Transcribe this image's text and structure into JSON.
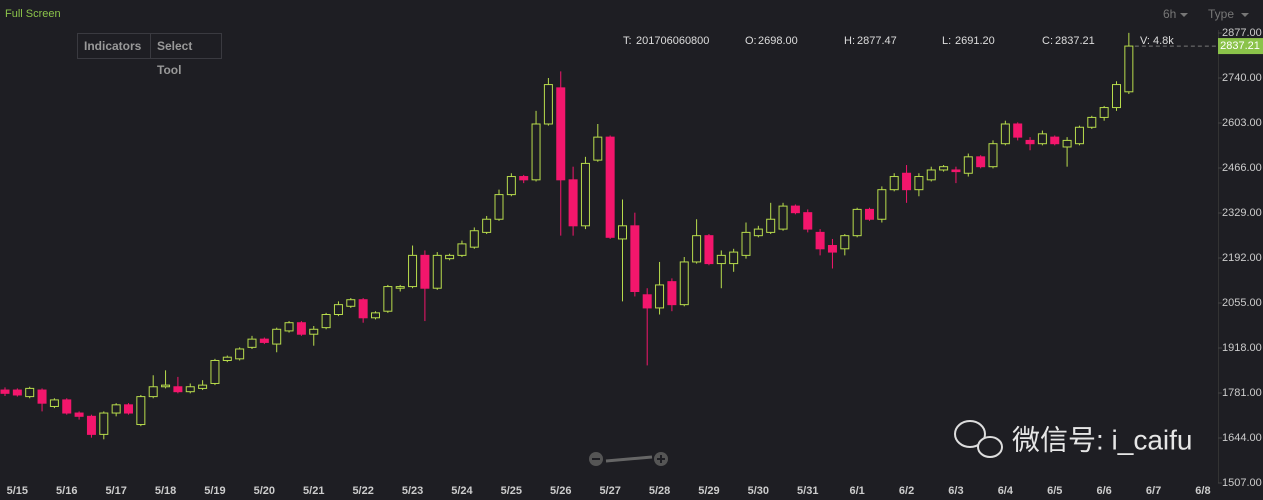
{
  "toolbar": {
    "full_screen": "Full Screen",
    "interval": "6h",
    "type": "Type",
    "indicators": "Indicators",
    "select": "Select",
    "tool": "Tool"
  },
  "chart_data": {
    "type": "candlestick",
    "categories": [
      null,
      "5/15",
      null,
      null,
      null,
      "5/16",
      null,
      null,
      null,
      "5/17",
      null,
      null,
      null,
      "5/18",
      null,
      null,
      null,
      "5/19",
      null,
      null,
      null,
      "5/20",
      null,
      null,
      null,
      "5/21",
      null,
      null,
      null,
      "5/22",
      null,
      null,
      null,
      "5/23",
      null,
      null,
      null,
      "5/24",
      null,
      null,
      null,
      "5/25",
      null,
      null,
      null,
      "5/26",
      null,
      null,
      null,
      "5/27",
      null,
      null,
      null,
      "5/28",
      null,
      null,
      null,
      "5/29",
      null,
      null,
      null,
      "5/30",
      null,
      null,
      null,
      "5/31",
      null,
      null,
      null,
      "6/1",
      null,
      null,
      null,
      "6/2",
      null,
      null,
      null,
      "6/3",
      null,
      null,
      null,
      "6/4",
      null,
      null,
      null,
      "6/5",
      null,
      null,
      null,
      "6/6",
      null,
      null,
      null,
      "6/7",
      null,
      null,
      null,
      "6/8"
    ],
    "open": [
      1790,
      1790,
      1770,
      1790,
      1740,
      1760,
      1720,
      1710,
      1655,
      1720,
      1745,
      1685,
      1770,
      1800,
      1800,
      1785,
      1795,
      1810,
      1880,
      1885,
      1920,
      1945,
      1930,
      1970,
      1995,
      1960,
      1980,
      2020,
      2045,
      2065,
      2010,
      2030,
      2100,
      2105,
      2200,
      2100,
      2190,
      2200,
      2225,
      2270,
      2310,
      2385,
      2440,
      2430,
      2600,
      2710,
      2430,
      2290,
      2490,
      2560,
      2250,
      2290,
      2080,
      2040,
      2120,
      2050,
      2180,
      2260,
      2175,
      2175,
      2200,
      2260,
      2270,
      2280,
      2350,
      2330,
      2270,
      2230,
      2220,
      2260,
      2340,
      2310,
      2400,
      2450,
      2400,
      2430,
      2460,
      2460,
      2450,
      2500,
      2470,
      2540,
      2600,
      2550,
      2540,
      2560,
      2530,
      2540,
      2590,
      2620,
      2650,
      2698.0,
      null,
      null,
      null,
      null,
      null,
      null
    ],
    "high": [
      1798,
      1795,
      1800,
      1795,
      1765,
      1765,
      1725,
      1715,
      1725,
      1750,
      1750,
      1775,
      1835,
      1850,
      1830,
      1810,
      1820,
      1885,
      1895,
      1920,
      1955,
      1950,
      1980,
      2000,
      2000,
      1985,
      2025,
      2060,
      2070,
      2070,
      2030,
      2110,
      2110,
      2230,
      2215,
      2210,
      2205,
      2245,
      2285,
      2320,
      2400,
      2450,
      2445,
      2640,
      2740,
      2760,
      2470,
      2500,
      2600,
      2565,
      2370,
      2330,
      2100,
      2180,
      2130,
      2195,
      2310,
      2265,
      2215,
      2220,
      2300,
      2290,
      2360,
      2360,
      2355,
      2340,
      2280,
      2250,
      2265,
      2345,
      2345,
      2410,
      2450,
      2475,
      2450,
      2470,
      2475,
      2470,
      2510,
      2505,
      2550,
      2610,
      2605,
      2560,
      2580,
      2565,
      2560,
      2595,
      2625,
      2655,
      2730,
      2877.47,
      null,
      null,
      null,
      null,
      null,
      null
    ],
    "low": [
      1772,
      1770,
      1765,
      1725,
      1735,
      1715,
      1700,
      1645,
      1640,
      1710,
      1715,
      1680,
      1765,
      1795,
      1780,
      1780,
      1790,
      1805,
      1875,
      1880,
      1915,
      1930,
      1905,
      1965,
      1955,
      1925,
      1975,
      2015,
      2040,
      1995,
      2005,
      2025,
      2090,
      2100,
      2000,
      2095,
      2185,
      2195,
      2220,
      2265,
      2305,
      2380,
      2420,
      2425,
      2595,
      2260,
      2260,
      2280,
      2485,
      2250,
      2060,
      2075,
      1865,
      2020,
      2030,
      2045,
      2175,
      2170,
      2100,
      2150,
      2190,
      2255,
      2265,
      2275,
      2325,
      2270,
      2200,
      2160,
      2200,
      2255,
      2305,
      2300,
      2395,
      2360,
      2380,
      2425,
      2455,
      2420,
      2440,
      2465,
      2465,
      2535,
      2550,
      2520,
      2535,
      2535,
      2470,
      2535,
      2585,
      2610,
      2640,
      2691.2,
      null,
      null,
      null,
      null,
      null,
      null
    ],
    "close": [
      1780,
      1775,
      1795,
      1750,
      1760,
      1720,
      1710,
      1655,
      1720,
      1745,
      1720,
      1770,
      1800,
      1805,
      1785,
      1800,
      1805,
      1880,
      1890,
      1915,
      1945,
      1935,
      1975,
      1995,
      1960,
      1975,
      2020,
      2050,
      2065,
      2010,
      2025,
      2105,
      2105,
      2200,
      2100,
      2200,
      2200,
      2235,
      2275,
      2310,
      2385,
      2440,
      2430,
      2600,
      2720,
      2430,
      2290,
      2480,
      2560,
      2255,
      2290,
      2090,
      2040,
      2110,
      2050,
      2180,
      2260,
      2175,
      2200,
      2210,
      2270,
      2280,
      2310,
      2350,
      2330,
      2280,
      2220,
      2210,
      2260,
      2340,
      2310,
      2400,
      2440,
      2400,
      2440,
      2460,
      2470,
      2455,
      2500,
      2470,
      2540,
      2600,
      2560,
      2540,
      2570,
      2540,
      2550,
      2590,
      2620,
      2650,
      2720,
      2837.21,
      null,
      null,
      null,
      null,
      null,
      null
    ],
    "up_color": "#b8dc4c",
    "down_color": "#f3166c",
    "ylim": [
      1507,
      2877
    ],
    "yticks": [
      {
        "value": 1507,
        "label": "1507.00"
      },
      {
        "value": 1644,
        "label": "1644.00"
      },
      {
        "value": 1781,
        "label": "1781.00"
      },
      {
        "value": 1918,
        "label": "1918.00"
      },
      {
        "value": 2055,
        "label": "2055.00"
      },
      {
        "value": 2192,
        "label": "2192.00"
      },
      {
        "value": 2329,
        "label": "2329.00"
      },
      {
        "value": 2466,
        "label": "2466.00"
      },
      {
        "value": 2603,
        "label": "2603.00"
      },
      {
        "value": 2740,
        "label": "2740.00"
      },
      {
        "value": 2877,
        "label": "2877.00"
      }
    ],
    "current_price": {
      "value": 2837.21,
      "label": "2837.21"
    },
    "info": [
      {
        "label": "T:",
        "value": "201706060800"
      },
      {
        "label": "O:",
        "value": "2698.00"
      },
      {
        "label": "H:",
        "value": "2877.47"
      },
      {
        "label": "L:",
        "value": "2691.20"
      },
      {
        "label": "C:",
        "value": "2837.21"
      },
      {
        "label": "V:",
        "value": "4.8k"
      }
    ],
    "watermark": "微信号: i_caifu"
  }
}
